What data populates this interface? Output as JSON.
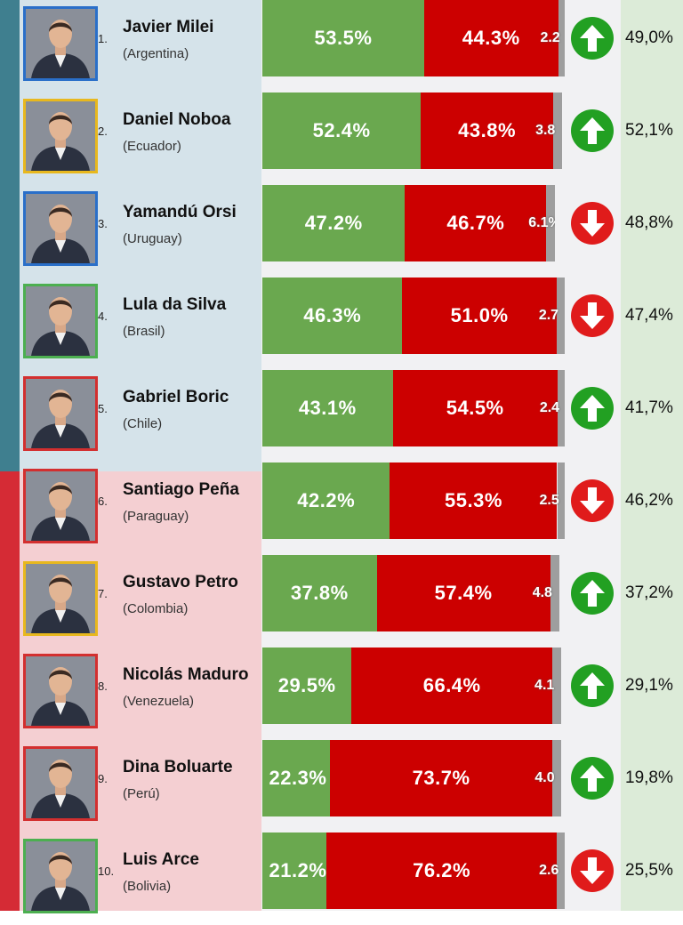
{
  "colors": {
    "approve": "#6aa84f",
    "disapprove": "#cc0000",
    "other": "#9e9e9e",
    "trend_up": "#22a022",
    "trend_down": "#e01b1b",
    "stripe_top": "#3f7f8f",
    "stripe_bottom": "#d52b35",
    "panel_top": "#d5e3ea",
    "panel_bottom": "#f4cfd2",
    "bar_bg": "#f1f1f3",
    "prev_bg": "#dcebd8"
  },
  "chart_data": {
    "type": "bar",
    "stacked": true,
    "orientation": "horizontal",
    "series": [
      {
        "key": "approve",
        "values": [
          53.5,
          52.4,
          47.2,
          46.3,
          43.1,
          42.2,
          37.8,
          29.5,
          22.3,
          21.2
        ]
      },
      {
        "key": "disapprove",
        "values": [
          44.3,
          43.8,
          46.7,
          51.0,
          54.5,
          55.3,
          57.4,
          66.4,
          73.7,
          76.2
        ]
      },
      {
        "key": "other",
        "values": [
          2.2,
          3.8,
          6.1,
          2.7,
          2.4,
          2.5,
          4.8,
          4.1,
          4.0,
          2.6
        ]
      }
    ],
    "xlim": [
      0,
      100
    ],
    "rows": [
      {
        "rank": "1.",
        "name": "Javier Milei",
        "country": "(Argentina)",
        "approve_label": "53.5%",
        "disapprove_label": "44.3%",
        "other_label": "2.2",
        "trend": "up",
        "previous": "49,0%",
        "frame_color": "#2a6fc9",
        "group": "top"
      },
      {
        "rank": "2.",
        "name": "Daniel Noboa",
        "country": "(Ecuador)",
        "approve_label": "52.4%",
        "disapprove_label": "43.8%",
        "other_label": "3.8",
        "trend": "up",
        "previous": "52,1%",
        "frame_color": "#e8b81e",
        "group": "top"
      },
      {
        "rank": "3.",
        "name": "Yamandú Orsi",
        "country": "(Uruguay)",
        "approve_label": "47.2%",
        "disapprove_label": "46.7%",
        "other_label": "6.1%",
        "trend": "down",
        "previous": "48,8%",
        "frame_color": "#2a6fc9",
        "group": "top"
      },
      {
        "rank": "4.",
        "name": "Lula da Silva",
        "country": "(Brasil)",
        "approve_label": "46.3%",
        "disapprove_label": "51.0%",
        "other_label": "2.7",
        "trend": "down",
        "previous": "47,4%",
        "frame_color": "#4caf50",
        "group": "top"
      },
      {
        "rank": "5.",
        "name": "Gabriel Boric",
        "country": "(Chile)",
        "approve_label": "43.1%",
        "disapprove_label": "54.5%",
        "other_label": "2.4",
        "trend": "up",
        "previous": "41,7%",
        "frame_color": "#d32f2f",
        "group": "top"
      },
      {
        "rank": "6.",
        "name": "Santiago Peña",
        "country": "(Paraguay)",
        "approve_label": "42.2%",
        "disapprove_label": "55.3%",
        "other_label": "2.5",
        "trend": "down",
        "previous": "46,2%",
        "frame_color": "#d32f2f",
        "group": "bottom"
      },
      {
        "rank": "7.",
        "name": "Gustavo Petro",
        "country": "(Colombia)",
        "approve_label": "37.8%",
        "disapprove_label": "57.4%",
        "other_label": "4.8",
        "trend": "up",
        "previous": "37,2%",
        "frame_color": "#e8b81e",
        "group": "bottom"
      },
      {
        "rank": "8.",
        "name": "Nicolás Maduro",
        "country": "(Venezuela)",
        "approve_label": "29.5%",
        "disapprove_label": "66.4%",
        "other_label": "4.1",
        "trend": "up",
        "previous": "29,1%",
        "frame_color": "#d32f2f",
        "group": "bottom"
      },
      {
        "rank": "9.",
        "name": "Dina Boluarte",
        "country": "(Perú)",
        "approve_label": "22.3%",
        "disapprove_label": "73.7%",
        "other_label": "4.0",
        "trend": "up",
        "previous": "19,8%",
        "frame_color": "#d32f2f",
        "group": "bottom"
      },
      {
        "rank": "10.",
        "name": "Luis Arce",
        "country": "(Bolivia)",
        "approve_label": "21.2%",
        "disapprove_label": "76.2%",
        "other_label": "2.6",
        "trend": "down",
        "previous": "25,5%",
        "frame_color": "#4caf50",
        "group": "bottom"
      }
    ]
  }
}
